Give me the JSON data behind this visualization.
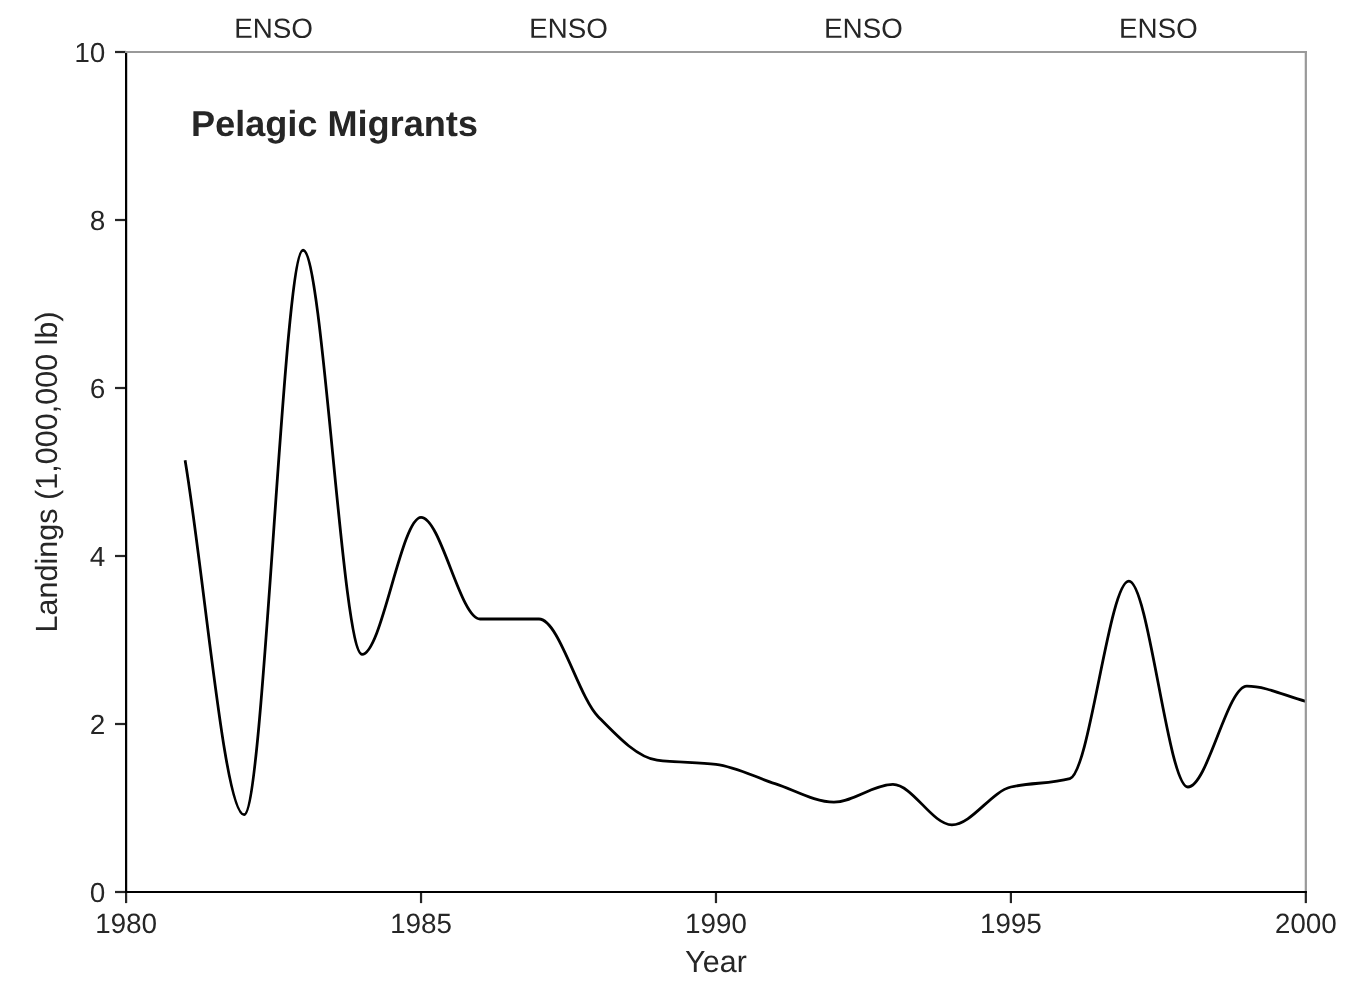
{
  "chart_data": {
    "type": "line",
    "title": "Pelagic Migrants",
    "xlabel": "Year",
    "ylabel": "Landings (1,000,000 lb)",
    "x": [
      1981,
      1982,
      1983,
      1984,
      1985,
      1986,
      1987,
      1988,
      1989,
      1990,
      1991,
      1992,
      1993,
      1994,
      1995,
      1996,
      1997,
      1998,
      1999,
      2000
    ],
    "series": [
      {
        "color": "#000000",
        "values": [
          5.14,
          0.92,
          7.64,
          2.83,
          4.46,
          3.25,
          3.25,
          2.09,
          1.57,
          1.52,
          1.29,
          1.07,
          1.28,
          0.8,
          1.25,
          1.35,
          3.7,
          1.25,
          2.45,
          2.27
        ]
      }
    ],
    "xlim": [
      1980,
      2000
    ],
    "xticks": [
      1980,
      1985,
      1990,
      1995,
      2000
    ],
    "ylim": [
      0,
      10
    ],
    "yticks": [
      0,
      2,
      4,
      6,
      8,
      10
    ],
    "annotations": [
      "ENSO",
      "ENSO",
      "ENSO",
      "ENSO"
    ],
    "grid": false,
    "legend": false,
    "marker": "none",
    "line_style": "solid"
  }
}
